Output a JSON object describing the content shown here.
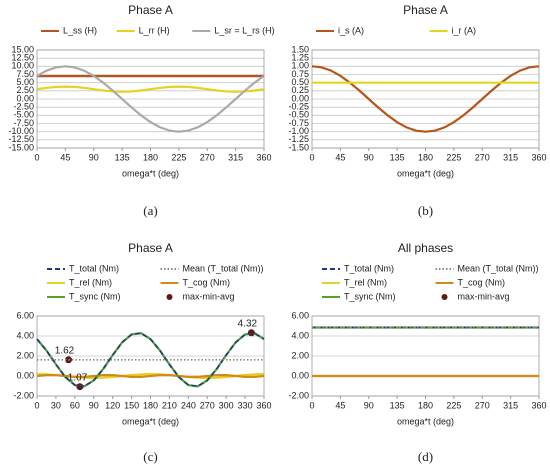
{
  "chart_data": [
    {
      "type": "line",
      "title": "Phase A",
      "caption": "(a)",
      "x_label": "omega*t (deg)",
      "x": [
        0,
        15,
        30,
        45,
        60,
        75,
        90,
        105,
        120,
        135,
        150,
        165,
        180,
        195,
        210,
        225,
        240,
        255,
        270,
        285,
        300,
        315,
        330,
        345,
        360
      ],
      "xlim": [
        0,
        360
      ],
      "xticks": [
        0,
        45,
        90,
        135,
        180,
        225,
        270,
        315,
        360
      ],
      "ylim": [
        -15,
        15
      ],
      "yticks": [
        {
          "value": 15,
          "label": "15.00"
        },
        {
          "value": 12.5,
          "label": "12.50"
        },
        {
          "value": 10,
          "label": "10.00"
        },
        {
          "value": 7.5,
          "label": "7.50"
        },
        {
          "value": 5,
          "label": "5.00"
        },
        {
          "value": 2.5,
          "label": "2.50"
        },
        {
          "value": 0,
          "label": "0.00"
        },
        {
          "value": -2.5,
          "label": "-2.50"
        },
        {
          "value": -5,
          "label": "-5.00"
        },
        {
          "value": -7.5,
          "label": "-7.50"
        },
        {
          "value": -10,
          "label": "-10.00"
        },
        {
          "value": -12.5,
          "label": "-12.50"
        },
        {
          "value": -15,
          "label": "-15.00"
        }
      ],
      "grid": true,
      "series": [
        {
          "name": "L_ss (H)",
          "color": "#b5561b",
          "values": [
            7,
            7,
            7,
            7,
            7,
            7,
            7,
            7,
            7,
            7,
            7,
            7,
            7,
            7,
            7,
            7,
            7,
            7,
            7,
            7,
            7,
            7,
            7,
            7,
            7
          ]
        },
        {
          "name": "L_rr (H)",
          "color": "#e6d31e",
          "values": [
            3,
            3.4,
            3.69,
            3.8,
            3.69,
            3.4,
            3,
            2.6,
            2.31,
            2.2,
            2.31,
            2.6,
            3,
            3.4,
            3.69,
            3.8,
            3.69,
            3.4,
            3,
            2.6,
            2.31,
            2.2,
            2.31,
            2.6,
            3
          ]
        },
        {
          "name": "L_sr = L_rs (H)",
          "color": "#aaaaaa",
          "values": [
            7.07,
            8.66,
            9.66,
            10,
            9.66,
            8.66,
            7.07,
            5,
            2.59,
            0,
            -2.59,
            -5,
            -7.07,
            -8.66,
            -9.66,
            -10,
            -9.66,
            -8.66,
            -7.07,
            -5,
            -2.59,
            0,
            2.59,
            5,
            7.07
          ]
        }
      ]
    },
    {
      "type": "line",
      "title": "Phase A",
      "caption": "(b)",
      "x_label": "omega*t (deg)",
      "x": [
        0,
        15,
        30,
        45,
        60,
        75,
        90,
        105,
        120,
        135,
        150,
        165,
        180,
        195,
        210,
        225,
        240,
        255,
        270,
        285,
        300,
        315,
        330,
        345,
        360
      ],
      "xlim": [
        0,
        360
      ],
      "xticks": [
        0,
        45,
        90,
        135,
        180,
        225,
        270,
        315,
        360
      ],
      "ylim": [
        -1.5,
        1.5
      ],
      "yticks": [
        {
          "value": 1.5,
          "label": "1.50"
        },
        {
          "value": 1.25,
          "label": "1.25"
        },
        {
          "value": 1,
          "label": "1.00"
        },
        {
          "value": 0.75,
          "label": "0.75"
        },
        {
          "value": 0.5,
          "label": "0.50"
        },
        {
          "value": 0.25,
          "label": "0.25"
        },
        {
          "value": 0,
          "label": "0.00"
        },
        {
          "value": -0.25,
          "label": "-0.25"
        },
        {
          "value": -0.5,
          "label": "-0.50"
        },
        {
          "value": -0.75,
          "label": "-0.75"
        },
        {
          "value": -1,
          "label": "-1.00"
        },
        {
          "value": -1.25,
          "label": "-1.25"
        },
        {
          "value": -1.5,
          "label": "-1.50"
        }
      ],
      "grid": true,
      "series": [
        {
          "name": "i_s (A)",
          "color": "#b5561b",
          "values": [
            1,
            0.97,
            0.87,
            0.71,
            0.5,
            0.26,
            0,
            -0.26,
            -0.5,
            -0.71,
            -0.87,
            -0.97,
            -1,
            -0.97,
            -0.87,
            -0.71,
            -0.5,
            -0.26,
            0,
            0.26,
            0.5,
            0.71,
            0.87,
            0.97,
            1
          ]
        },
        {
          "name": "i_r (A)",
          "color": "#e6d31e",
          "values": [
            0.5,
            0.5,
            0.5,
            0.5,
            0.5,
            0.5,
            0.5,
            0.5,
            0.5,
            0.5,
            0.5,
            0.5,
            0.5,
            0.5,
            0.5,
            0.5,
            0.5,
            0.5,
            0.5,
            0.5,
            0.5,
            0.5,
            0.5,
            0.5,
            0.5
          ]
        }
      ]
    },
    {
      "type": "line",
      "title": "Phase A",
      "caption": "(c)",
      "x_label": "omega*t (deg)",
      "x": [
        0,
        15,
        30,
        45,
        60,
        75,
        90,
        105,
        120,
        135,
        150,
        165,
        180,
        195,
        210,
        225,
        240,
        255,
        270,
        285,
        300,
        315,
        330,
        345,
        360
      ],
      "xlim": [
        0,
        360
      ],
      "xticks": [
        0,
        30,
        60,
        90,
        120,
        150,
        180,
        210,
        240,
        270,
        300,
        330,
        360
      ],
      "ylim": [
        -2,
        6
      ],
      "yticks": [
        {
          "value": 6,
          "label": "6.00"
        },
        {
          "value": 4,
          "label": "4.00"
        },
        {
          "value": 2,
          "label": "2.00"
        },
        {
          "value": 0,
          "label": "0.00"
        },
        {
          "value": -2,
          "label": "-2.00"
        }
      ],
      "grid": true,
      "series": [
        {
          "name": "T_total (Nm)",
          "color": "#1f3b8a",
          "dash": "dashed",
          "values": [
            3.69,
            2.55,
            1.16,
            -0.11,
            -0.91,
            -1.03,
            -0.44,
            0.7,
            2.09,
            3.36,
            4.16,
            4.28,
            3.69,
            2.55,
            1.16,
            -0.11,
            -0.91,
            -1.03,
            -0.44,
            0.7,
            2.09,
            3.36,
            4.16,
            4.28,
            3.69
          ]
        },
        {
          "name": "Mean (T_total (Nm))",
          "color": "#888888",
          "dash": "dotted",
          "values": [
            1.62,
            1.62,
            1.62,
            1.62,
            1.62,
            1.62,
            1.62,
            1.62,
            1.62,
            1.62,
            1.62,
            1.62,
            1.62,
            1.62,
            1.62,
            1.62,
            1.62,
            1.62,
            1.62,
            1.62,
            1.62,
            1.62,
            1.62,
            1.62,
            1.62
          ]
        },
        {
          "name": "T_rel (Nm)",
          "color": "#e6d31e",
          "values": [
            0.2,
            0.17,
            0.1,
            0,
            -0.1,
            -0.17,
            -0.2,
            -0.17,
            -0.1,
            0,
            0.1,
            0.17,
            0.2,
            0.17,
            0.1,
            0,
            -0.1,
            -0.17,
            -0.2,
            -0.17,
            -0.1,
            0,
            0.1,
            0.17,
            0.2
          ]
        },
        {
          "name": "T_cog (Nm)",
          "color": "#d4891c",
          "values": [
            0,
            0.09,
            0.09,
            0,
            -0.09,
            -0.09,
            0,
            0.09,
            0.09,
            0,
            -0.09,
            -0.09,
            0,
            0.09,
            0.09,
            0,
            -0.09,
            -0.09,
            0,
            0.09,
            0.09,
            0,
            -0.09,
            -0.09,
            0
          ]
        },
        {
          "name": "T_sync (Nm)",
          "color": "#5aa02c",
          "values": [
            3.69,
            2.55,
            1.16,
            -0.11,
            -0.91,
            -1.03,
            -0.44,
            0.7,
            2.09,
            3.36,
            4.16,
            4.28,
            3.69,
            2.55,
            1.16,
            -0.11,
            -0.91,
            -1.03,
            -0.44,
            0.7,
            2.09,
            3.36,
            4.16,
            4.28,
            3.69
          ]
        },
        {
          "name": "max-min-avg",
          "color": "#5b1a1a",
          "kind": "scatter",
          "x": [
            50,
            68,
            340
          ],
          "values": [
            1.62,
            -1.07,
            4.32
          ]
        }
      ]
    },
    {
      "type": "line",
      "title": "All phases",
      "caption": "(d)",
      "x_label": "omega*t (deg)",
      "x": [
        0,
        360
      ],
      "xlim": [
        0,
        360
      ],
      "xticks": [
        0,
        45,
        90,
        135,
        180,
        225,
        270,
        315,
        360
      ],
      "ylim": [
        -2,
        6
      ],
      "yticks": [
        {
          "value": 6,
          "label": "6.00"
        },
        {
          "value": 4,
          "label": "4.00"
        },
        {
          "value": 2,
          "label": "2.00"
        },
        {
          "value": 0,
          "label": "0.00"
        },
        {
          "value": -2,
          "label": "-2.00"
        }
      ],
      "grid": true,
      "series": [
        {
          "name": "T_total (Nm)",
          "color": "#1f3b8a",
          "dash": "dashed",
          "values": [
            4.85,
            4.85
          ]
        },
        {
          "name": "Mean (T_total (Nm))",
          "color": "#888888",
          "dash": "dotted",
          "values": [
            4.85,
            4.85
          ]
        },
        {
          "name": "T_rel (Nm)",
          "color": "#e6d31e",
          "values": [
            0,
            0
          ]
        },
        {
          "name": "T_cog (Nm)",
          "color": "#d4891c",
          "values": [
            0,
            0
          ]
        },
        {
          "name": "T_sync (Nm)",
          "color": "#5aa02c",
          "values": [
            4.85,
            4.85
          ]
        },
        {
          "name": "max-min-avg",
          "color": "#5b1a1a",
          "kind": "scatter",
          "x": [],
          "values": []
        }
      ]
    }
  ]
}
